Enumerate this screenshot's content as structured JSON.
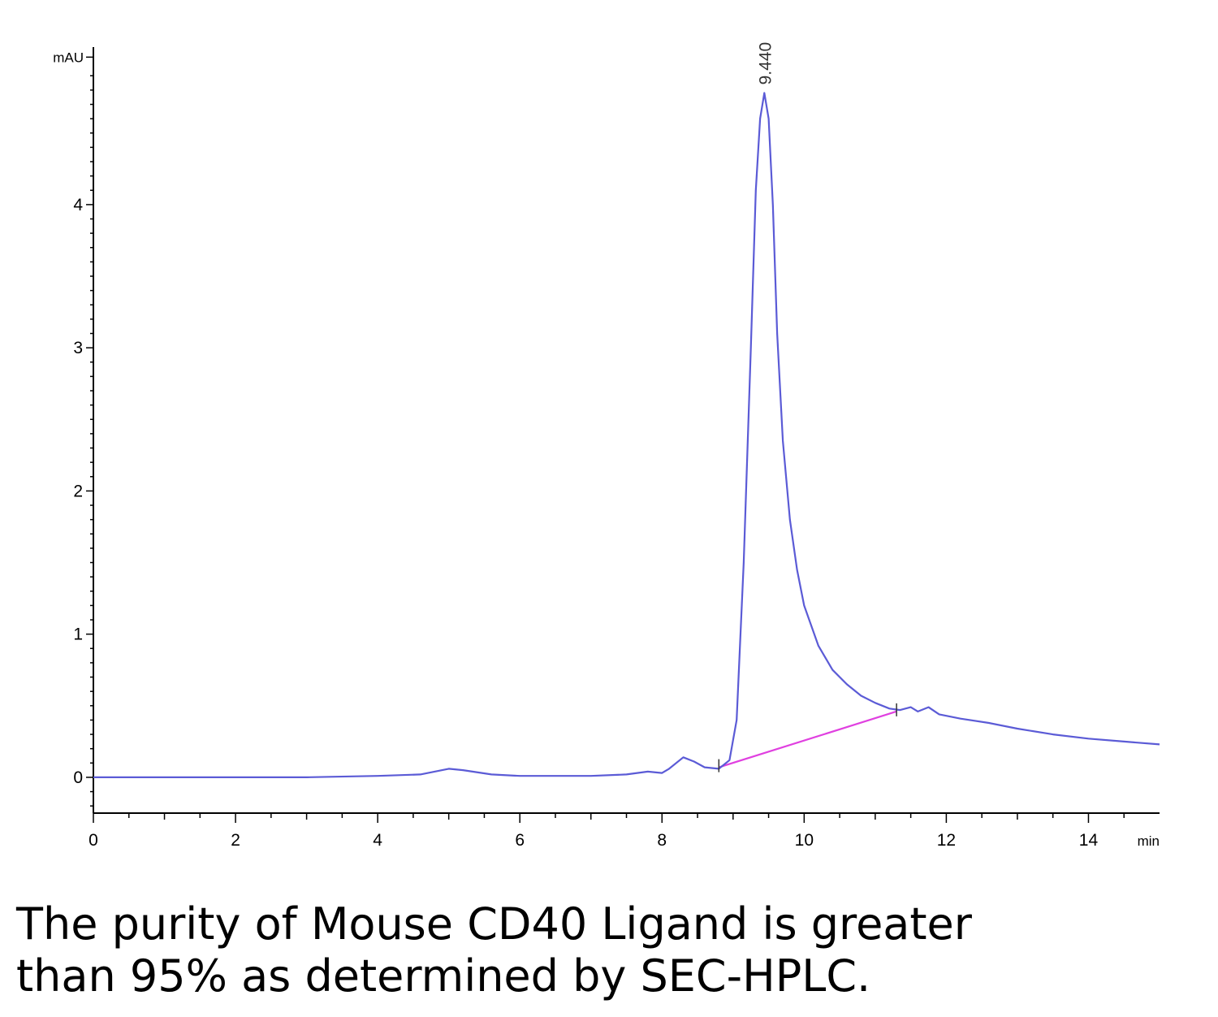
{
  "chart_data": {
    "type": "line",
    "ylabel": "mAU",
    "xlabel": "min",
    "xlim": [
      0,
      15
    ],
    "ylim": [
      -0.25,
      5.1
    ],
    "x_ticks": [
      "0",
      "2",
      "4",
      "6",
      "8",
      "10",
      "12",
      "14"
    ],
    "y_ticks": [
      "0",
      "1",
      "2",
      "3",
      "4"
    ],
    "grid": false,
    "series": [
      {
        "color": "#5b5bd6",
        "x": [
          0,
          1,
          2,
          3,
          4,
          4.6,
          5.0,
          5.2,
          5.6,
          6.0,
          7.0,
          7.5,
          7.8,
          8.0,
          8.1,
          8.3,
          8.45,
          8.6,
          8.8,
          8.95,
          9.05,
          9.15,
          9.25,
          9.32,
          9.38,
          9.44,
          9.5,
          9.56,
          9.62,
          9.7,
          9.8,
          9.9,
          10.0,
          10.2,
          10.4,
          10.6,
          10.8,
          11.0,
          11.2,
          11.35,
          11.5,
          11.6,
          11.75,
          11.9,
          12.2,
          12.6,
          13.0,
          13.5,
          14.0,
          14.5,
          15.0
        ],
        "y": [
          0.0,
          0.0,
          0.0,
          0.0,
          0.01,
          0.02,
          0.06,
          0.05,
          0.02,
          0.01,
          0.01,
          0.02,
          0.04,
          0.03,
          0.06,
          0.14,
          0.11,
          0.07,
          0.06,
          0.12,
          0.4,
          1.5,
          3.0,
          4.1,
          4.6,
          4.78,
          4.6,
          4.0,
          3.1,
          2.35,
          1.8,
          1.45,
          1.2,
          0.92,
          0.75,
          0.65,
          0.57,
          0.52,
          0.48,
          0.47,
          0.49,
          0.46,
          0.49,
          0.44,
          0.41,
          0.38,
          0.34,
          0.3,
          0.27,
          0.25,
          0.23
        ]
      }
    ],
    "baseline": {
      "color": "#e040e0",
      "x": [
        8.8,
        11.3
      ],
      "y": [
        0.07,
        0.46
      ]
    },
    "integration_marks": [
      8.8,
      11.3
    ],
    "annotations": [
      {
        "text": "9.440",
        "x": 9.44,
        "y": 4.78
      }
    ]
  },
  "caption": {
    "line1": "The purity of Mouse CD40 Ligand is greater",
    "line2": "than 95% as determined by SEC-HPLC."
  }
}
